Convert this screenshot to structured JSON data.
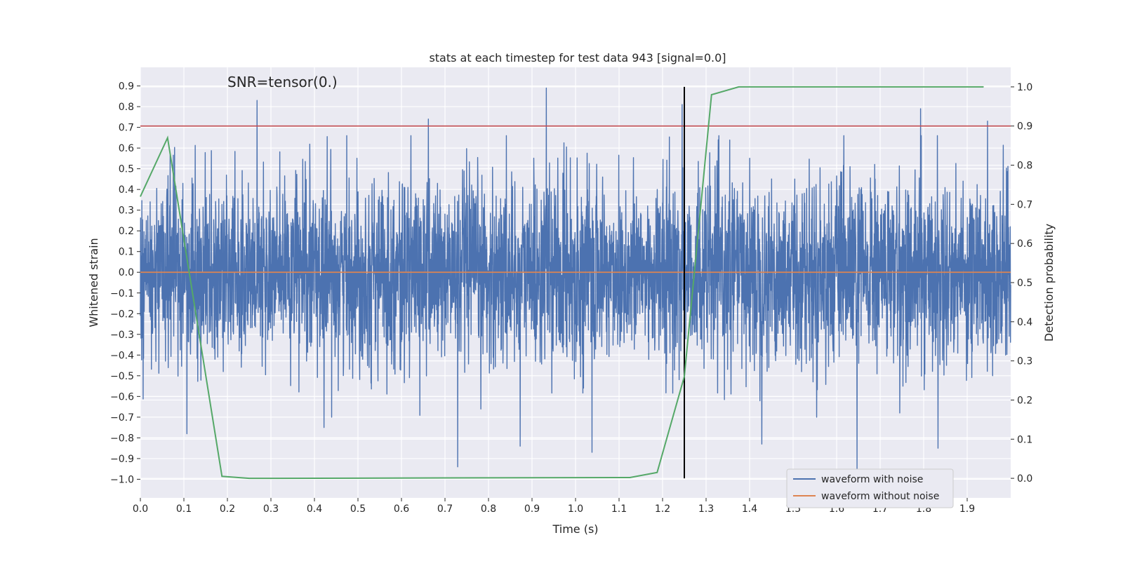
{
  "chart_data": {
    "type": "line",
    "title": "stats at each timestep for test data 943 [signal=0.0]",
    "xlabel": "Time (s)",
    "ylabel": "Whitened strain",
    "y2label": "Detection probability",
    "annotation": "SNR=tensor(0.)",
    "xlim": [
      0.0,
      2.0
    ],
    "ylim": [
      -1.09,
      0.99
    ],
    "y2lim": [
      -0.05,
      1.05
    ],
    "x_ticks": [
      0.0,
      0.1,
      0.2,
      0.3,
      0.4,
      0.5,
      0.6,
      0.7,
      0.8,
      0.9,
      1.0,
      1.1,
      1.2,
      1.3,
      1.4,
      1.5,
      1.6,
      1.7,
      1.8,
      1.9
    ],
    "x_tick_labels": [
      "0.0",
      "0.1",
      "0.2",
      "0.3",
      "0.4",
      "0.5",
      "0.6",
      "0.7",
      "0.8",
      "0.9",
      "1.0",
      "1.1",
      "1.2",
      "1.3",
      "1.4",
      "1.5",
      "1.6",
      "1.7",
      "1.8",
      "1.9"
    ],
    "y_ticks": [
      0.9,
      0.8,
      0.7,
      0.6,
      0.5,
      0.4,
      0.3,
      0.2,
      0.1,
      0.0,
      -0.1,
      -0.2,
      -0.3,
      -0.4,
      -0.5,
      -0.6,
      -0.7,
      -0.8,
      -0.9,
      -1.0
    ],
    "y_tick_labels": [
      "0.9",
      "0.8",
      "0.7",
      "0.6",
      "0.5",
      "0.4",
      "0.3",
      "0.2",
      "0.1",
      "0.0",
      "−0.1",
      "−0.2",
      "−0.3",
      "−0.4",
      "−0.5",
      "−0.6",
      "−0.7",
      "−0.8",
      "−0.9",
      "−1.0"
    ],
    "y2_ticks": [
      1.0,
      0.9,
      0.8,
      0.7,
      0.6,
      0.5,
      0.4,
      0.3,
      0.2,
      0.1,
      0.0
    ],
    "y2_tick_labels": [
      "1.0",
      "0.9",
      "0.8",
      "0.7",
      "0.6",
      "0.5",
      "0.4",
      "0.3",
      "0.2",
      "0.1",
      "0.0"
    ],
    "threshold": {
      "value": 0.9,
      "axis": "right",
      "color": "#c44e52"
    },
    "vertical_marker": {
      "x": 1.25,
      "color": "#000000"
    },
    "noise_series": {
      "name": "waveform with noise",
      "color": "#4c72b0",
      "sample_count": 4096,
      "duration_s": 2.0,
      "amplitude_std": 0.22,
      "highlighted_peaks": [
        {
          "x": 0.268,
          "y": 0.83
        },
        {
          "x": 0.933,
          "y": 0.89
        },
        {
          "x": 0.662,
          "y": 0.74
        },
        {
          "x": 1.793,
          "y": 0.79
        },
        {
          "x": 1.647,
          "y": -0.97
        },
        {
          "x": 0.729,
          "y": -0.94
        },
        {
          "x": 1.245,
          "y": 0.81
        },
        {
          "x": 0.107,
          "y": -0.78
        },
        {
          "x": 0.422,
          "y": -0.75
        },
        {
          "x": 1.038,
          "y": -0.87
        },
        {
          "x": 0.873,
          "y": -0.84
        },
        {
          "x": 1.833,
          "y": -0.85
        },
        {
          "x": 1.947,
          "y": 0.73
        },
        {
          "x": 1.428,
          "y": -0.83
        }
      ]
    },
    "clean_series": {
      "name": "waveform without noise",
      "color": "#dd8452",
      "x": [
        0.0,
        2.0
      ],
      "y": [
        0.0,
        0.0
      ]
    },
    "probability_series": {
      "name": "detection probability",
      "color": "#55a868",
      "axis": "right",
      "x": [
        0.0,
        0.0625,
        0.1875,
        0.25,
        0.3125,
        1.125,
        1.1875,
        1.25,
        1.3125,
        1.375,
        1.9375
      ],
      "y": [
        0.72,
        0.87,
        0.005,
        0.0,
        0.0,
        0.002,
        0.015,
        0.26,
        0.98,
        1.0,
        1.0
      ]
    },
    "legend": {
      "placement": "lower-right",
      "entries": [
        {
          "label": "waveform with noise",
          "color": "#4c72b0"
        },
        {
          "label": "waveform without noise",
          "color": "#dd8452"
        }
      ]
    }
  }
}
